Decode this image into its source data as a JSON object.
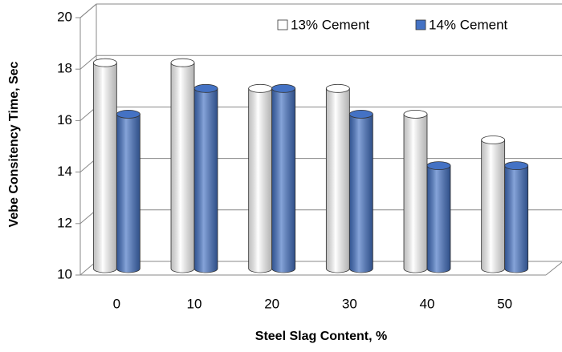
{
  "chart_data": {
    "type": "bar",
    "y_label": "Vebe Consitency Time, Sec",
    "x_label": "Steel Slag Content, %",
    "categories": [
      "0",
      "10",
      "20",
      "30",
      "40",
      "50"
    ],
    "series": [
      {
        "name": "13% Cement",
        "color": "#ffffff",
        "values": [
          18,
          18,
          17,
          17,
          16,
          15
        ]
      },
      {
        "name": "14% Cement",
        "color": "#4472c4",
        "values": [
          16,
          17,
          17,
          16,
          14,
          14
        ]
      }
    ],
    "ylim": [
      10,
      20
    ],
    "yticks": [
      10,
      12,
      14,
      16,
      18,
      20
    ],
    "grid": true,
    "legend": "top-right"
  }
}
